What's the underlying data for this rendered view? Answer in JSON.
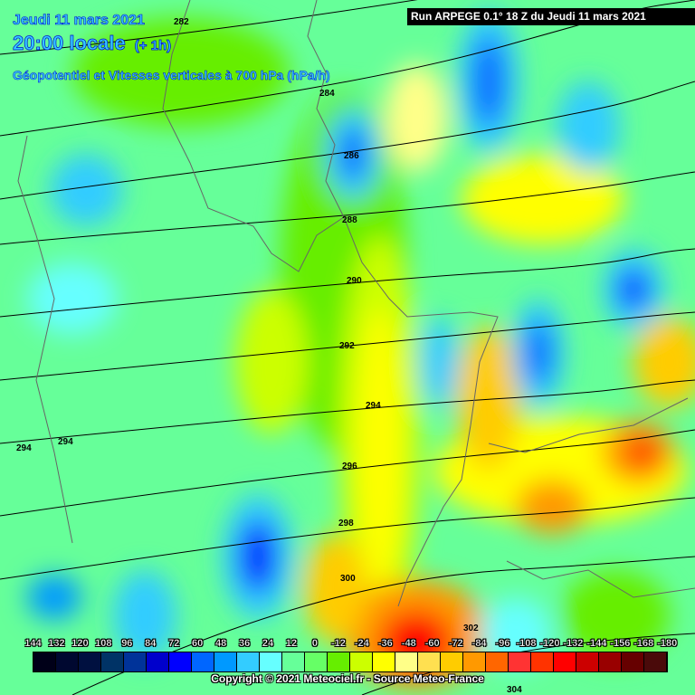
{
  "header": {
    "date": "Jeudi 11 mars 2021",
    "time": "20:00 locale",
    "offset": "(+ 1h)",
    "subtitle": "Géopotentiel et Vitesses verticales à 700 hPa (hPa/h)",
    "run": "Run ARPEGE 0.1° 18 Z du Jeudi 11 mars 2021"
  },
  "contours": [
    "282",
    "284",
    "286",
    "288",
    "290",
    "292",
    "294",
    "294",
    "294",
    "296",
    "298",
    "300",
    "302",
    "304"
  ],
  "colorbar": {
    "labels": [
      "144",
      "132",
      "120",
      "108",
      "96",
      "84",
      "72",
      "60",
      "48",
      "36",
      "24",
      "12",
      "0",
      "-12",
      "-24",
      "-36",
      "-48",
      "-60",
      "-72",
      "-84",
      "-96",
      "-108",
      "-120",
      "-132",
      "-144",
      "-156",
      "-168",
      "-180"
    ],
    "colors": [
      "#000018",
      "#000830",
      "#001040",
      "#003366",
      "#003399",
      "#0000cc",
      "#0000ff",
      "#0066ff",
      "#0099ff",
      "#33ccff",
      "#66ffff",
      "#66ff99",
      "#66ff66",
      "#66ee00",
      "#ccff00",
      "#ffff00",
      "#ffff88",
      "#ffe050",
      "#ffcc00",
      "#ff9900",
      "#ff6600",
      "#ff3333",
      "#ff3300",
      "#ff0000",
      "#cc0000",
      "#990000",
      "#660000",
      "#4a0a0a"
    ]
  },
  "footer": {
    "copyright": "Copyright © 2021 Meteociel.fr - Source Meteo-France"
  }
}
